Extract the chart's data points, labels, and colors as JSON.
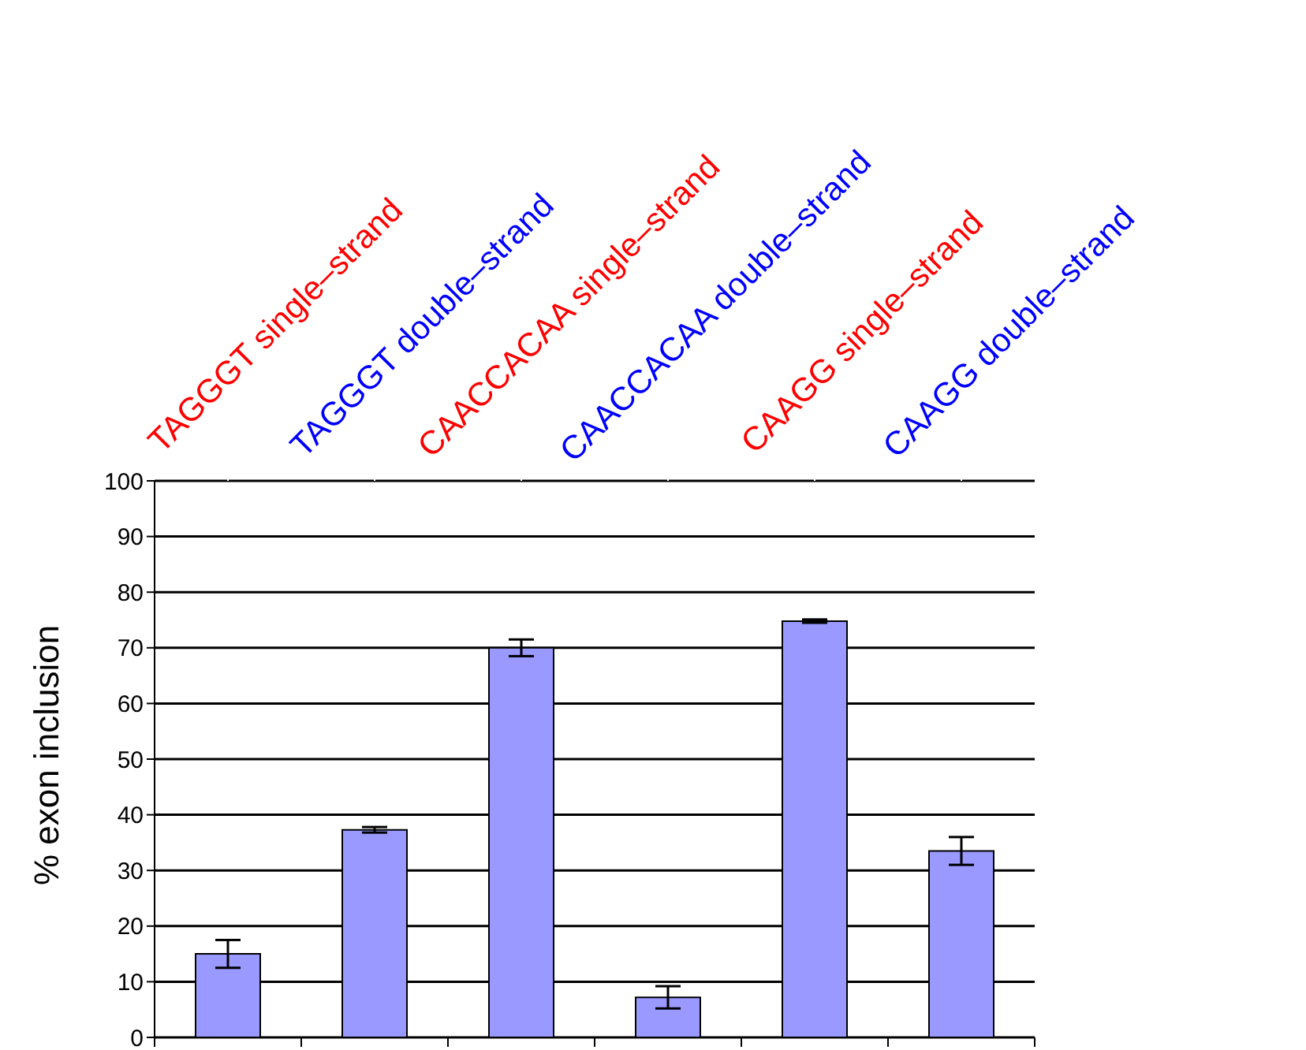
{
  "chart_data": {
    "type": "bar",
    "ylabel": "% exon inclusion",
    "categories": [
      "TAGGGT single–strand",
      "TAGGGT double–strand",
      "CAACCACAA single–strand",
      "CAACCACAA double–strand",
      "CAAGG single–strand",
      "CAAGG double–strand"
    ],
    "values": [
      15,
      37.3,
      70,
      7.2,
      74.8,
      33.5
    ],
    "errors": [
      2.5,
      0.5,
      1.5,
      2,
      0.3,
      2.5
    ],
    "color": "#9999ff",
    "ylim": [
      0,
      100
    ],
    "yticks": [
      0,
      10,
      20,
      30,
      40,
      50,
      60,
      70,
      80,
      90,
      100
    ],
    "grid": "y",
    "legend": false
  }
}
